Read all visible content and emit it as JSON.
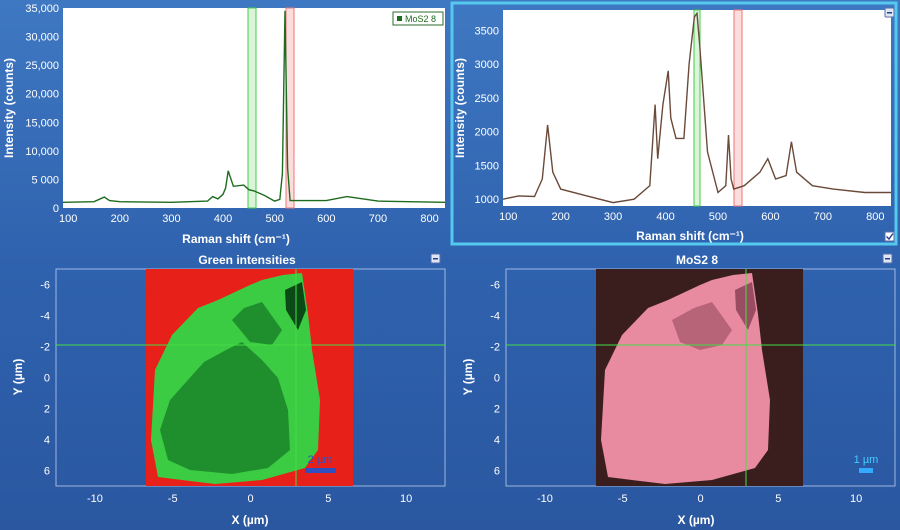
{
  "panels": {
    "spectrum_left": {
      "legend_label": "MoS2 8",
      "xlabel": "Raman shift (cm⁻¹)",
      "ylabel": "Intensity (counts)",
      "xticks": [
        "100",
        "200",
        "300",
        "400",
        "500",
        "600",
        "700",
        "800"
      ],
      "yticks": [
        "0",
        "5 000",
        "10,000",
        "15,000",
        "20,000",
        "25,000",
        "30,000",
        "35,000"
      ]
    },
    "spectrum_right": {
      "xlabel": "Raman shift (cm⁻¹)",
      "ylabel": "Intensity (counts)",
      "xticks": [
        "100",
        "200",
        "300",
        "400",
        "500",
        "600",
        "700",
        "800"
      ],
      "yticks": [
        "1000",
        "1500",
        "2000",
        "2500",
        "3000",
        "3500"
      ]
    },
    "map_left": {
      "title": "Green intensities",
      "xlabel": "X (µm)",
      "ylabel": "Y (µm)",
      "xticks": [
        "-10",
        "-5",
        "0",
        "5",
        "10"
      ],
      "yticks": [
        "-6",
        "-4",
        "-2",
        "0",
        "2",
        "4",
        "6"
      ],
      "scalebar_label": "2 µm"
    },
    "map_right": {
      "title": "MoS2 8",
      "xlabel": "X (µm)",
      "ylabel": "Y (µm)",
      "xticks": [
        "-10",
        "-5",
        "0",
        "5",
        "10"
      ],
      "yticks": [
        "-6",
        "-4",
        "-2",
        "0",
        "2",
        "4",
        "6"
      ],
      "scalebar_label": "1 µm"
    }
  },
  "colors": {
    "spectrum_left_line": "#1e6b1e",
    "spectrum_right_line": "#6a4a3a",
    "band_green": "#44cc44",
    "band_red": "#ee7777",
    "map_red_bg": "#e8201a",
    "map_dark_bg": "#3a1e1e",
    "flake_green": "#3ccc44",
    "flake_pink": "#e88aa0",
    "crosshair": "#44dd44",
    "selection_border": "#55c8ee"
  },
  "chart_data": [
    {
      "type": "line",
      "xlabel": "Raman shift (cm⁻¹)",
      "ylabel": "Intensity (counts)",
      "xlim": [
        90,
        830
      ],
      "ylim": [
        0,
        35000
      ],
      "legend": "top-right",
      "series": [
        {
          "name": "MoS2 8",
          "x": [
            90,
            150,
            170,
            180,
            200,
            300,
            370,
            380,
            390,
            400,
            405,
            410,
            420,
            440,
            450,
            460,
            480,
            500,
            510,
            515,
            520,
            525,
            530,
            560,
            600,
            640,
            700,
            760,
            830
          ],
          "y": [
            1000,
            1100,
            1900,
            1300,
            1100,
            1000,
            1200,
            2000,
            1600,
            2400,
            3500,
            6500,
            3800,
            4000,
            3200,
            3000,
            2200,
            1200,
            1500,
            6000,
            34500,
            7000,
            1300,
            1300,
            1300,
            2000,
            1200,
            1100,
            1000
          ]
        }
      ]
    },
    {
      "type": "line",
      "xlabel": "Raman shift (cm⁻¹)",
      "ylabel": "Intensity (counts)",
      "xlim": [
        90,
        830
      ],
      "ylim": [
        900,
        3800
      ],
      "series": [
        {
          "name": "",
          "x": [
            90,
            120,
            150,
            165,
            175,
            185,
            200,
            250,
            300,
            340,
            370,
            380,
            385,
            395,
            405,
            410,
            420,
            435,
            445,
            455,
            460,
            465,
            480,
            500,
            515,
            520,
            525,
            530,
            550,
            580,
            595,
            610,
            630,
            640,
            650,
            680,
            720,
            780,
            830
          ],
          "y": [
            1000,
            1050,
            1040,
            1300,
            2100,
            1400,
            1150,
            1050,
            950,
            1000,
            1200,
            2400,
            1600,
            2400,
            2900,
            2200,
            1900,
            1900,
            3000,
            3700,
            3750,
            3300,
            1700,
            1100,
            1200,
            1950,
            1300,
            1150,
            1200,
            1400,
            1600,
            1300,
            1350,
            1850,
            1400,
            1200,
            1150,
            1100,
            1100
          ]
        }
      ]
    }
  ]
}
